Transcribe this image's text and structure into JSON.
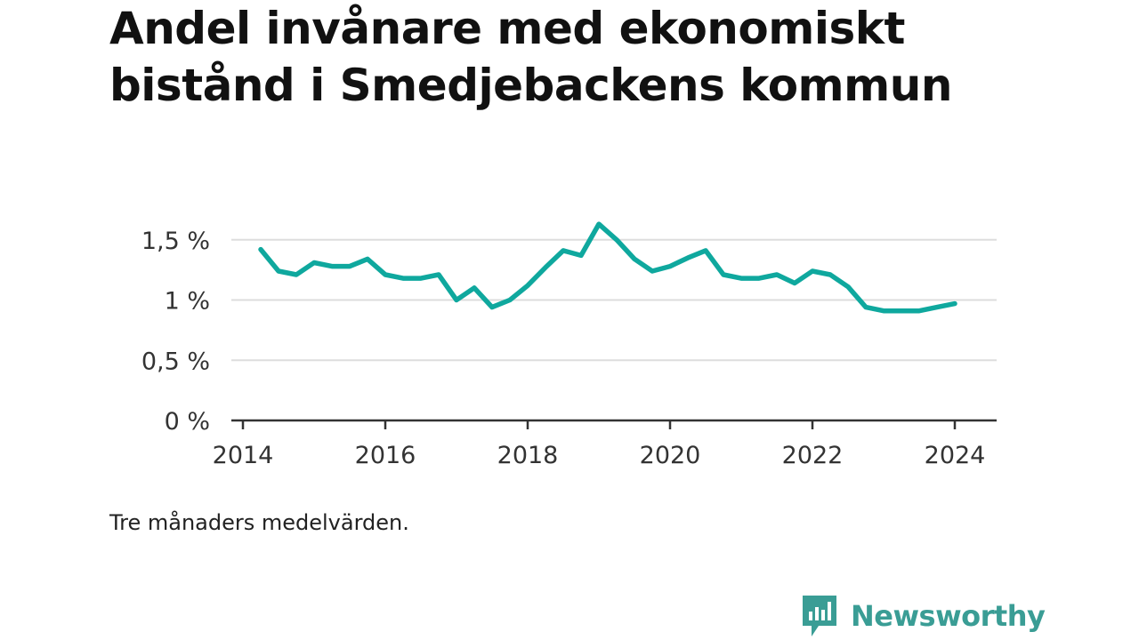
{
  "header": {
    "title": "Andel invånare med ekonomiskt bistånd i Smedjebackens kommun"
  },
  "footer": {
    "note": "Tre månaders medelvärden.",
    "brand": "Newsworthy",
    "brand_color": "#3a9d95"
  },
  "chart_data": {
    "type": "line",
    "title": "Andel invånare med ekonomiskt bistånd i Smedjebackens kommun",
    "xlabel": "",
    "ylabel": "",
    "x_ticks": [
      "2014",
      "2016",
      "2018",
      "2020",
      "2022",
      "2024"
    ],
    "y_ticks": [
      "0 %",
      "0,5 %",
      "1 %",
      "1,5 %"
    ],
    "y_tick_values": [
      0,
      0.5,
      1,
      1.5
    ],
    "xlim": [
      "2013-10",
      "2024-12"
    ],
    "ylim": [
      0,
      1.65
    ],
    "grid": "horizontal",
    "legend": "none",
    "line_color": "#0fa89e",
    "series": [
      {
        "x": [
          "2014-04",
          "2014-07",
          "2014-10",
          "2015-01",
          "2015-04",
          "2015-07",
          "2015-10",
          "2016-01",
          "2016-04",
          "2016-07",
          "2016-10",
          "2017-01",
          "2017-04",
          "2017-07",
          "2017-10",
          "2018-01",
          "2018-04",
          "2018-07",
          "2018-10",
          "2019-01",
          "2019-04",
          "2019-07",
          "2019-10",
          "2020-01",
          "2020-04",
          "2020-07",
          "2020-10",
          "2021-01",
          "2021-04",
          "2021-07",
          "2021-10",
          "2022-01",
          "2022-04",
          "2022-07",
          "2022-10",
          "2023-01",
          "2023-04",
          "2023-07",
          "2023-10",
          "2024-01"
        ],
        "values": [
          1.42,
          1.24,
          1.21,
          1.31,
          1.28,
          1.28,
          1.34,
          1.21,
          1.18,
          1.18,
          1.21,
          1.0,
          1.1,
          0.94,
          1.0,
          1.12,
          1.27,
          1.41,
          1.37,
          1.63,
          1.5,
          1.34,
          1.24,
          1.28,
          1.35,
          1.41,
          1.21,
          1.18,
          1.18,
          1.21,
          1.14,
          1.24,
          1.21,
          1.11,
          0.94,
          0.91,
          0.91,
          0.91,
          0.94,
          0.97
        ]
      }
    ]
  }
}
